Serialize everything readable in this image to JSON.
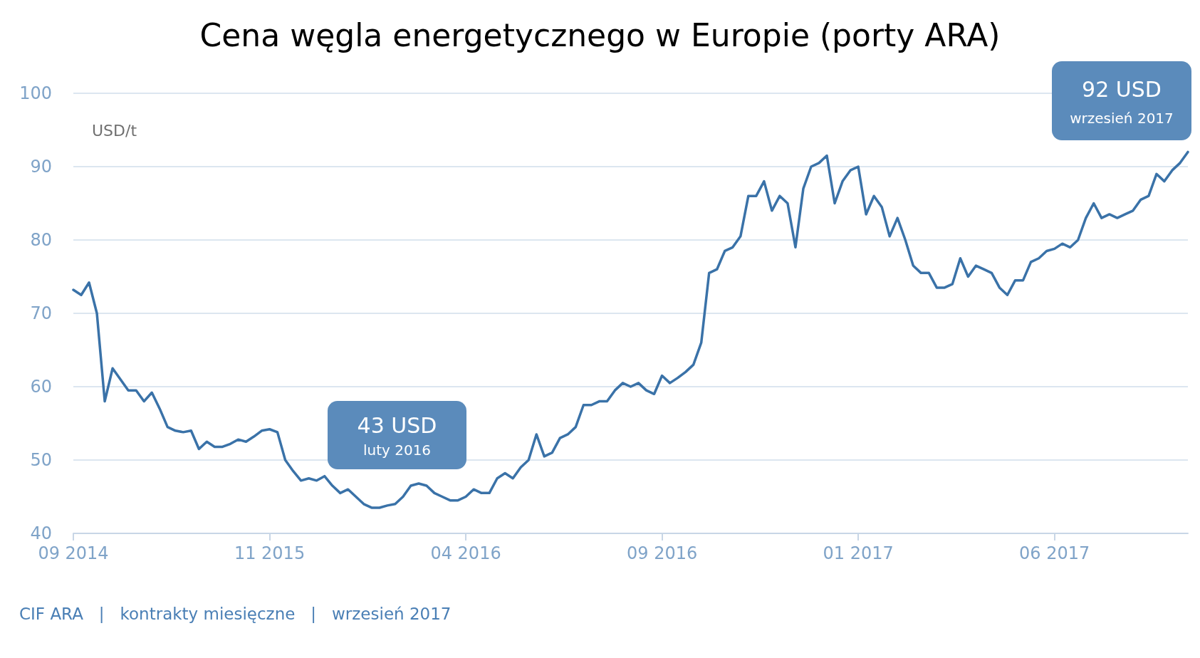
{
  "chart_data": {
    "type": "line",
    "title": "Cena węgla energetycznego w Europie (porty ARA)",
    "ylabel": "USD/t",
    "categories": [
      "09 2014",
      null,
      null,
      null,
      null,
      null,
      null,
      null,
      null,
      null,
      null,
      null,
      null,
      null,
      null,
      null,
      null,
      null,
      null,
      null,
      null,
      null,
      null,
      null,
      null,
      "11 2015",
      null,
      null,
      null,
      null,
      null,
      null,
      null,
      null,
      null,
      null,
      null,
      null,
      null,
      null,
      null,
      null,
      null,
      null,
      null,
      null,
      null,
      null,
      null,
      null,
      "04 2016",
      null,
      null,
      null,
      null,
      null,
      null,
      null,
      null,
      null,
      null,
      null,
      null,
      null,
      null,
      null,
      null,
      null,
      null,
      null,
      null,
      null,
      null,
      null,
      null,
      "09 2016",
      null,
      null,
      null,
      null,
      null,
      null,
      null,
      null,
      null,
      null,
      null,
      null,
      null,
      null,
      null,
      null,
      null,
      null,
      null,
      null,
      null,
      null,
      null,
      null,
      "01 2017",
      null,
      null,
      null,
      null,
      null,
      null,
      null,
      null,
      null,
      null,
      null,
      null,
      null,
      null,
      null,
      null,
      null,
      null,
      null,
      null,
      null,
      null,
      null,
      null,
      "06 2017",
      null,
      null,
      null,
      null,
      null,
      null,
      null,
      null,
      null,
      null,
      null,
      null,
      null,
      null,
      null,
      null,
      null
    ],
    "series": [
      {
        "color": "#3a72a8",
        "values": [
          73.2,
          72.5,
          74.2,
          70,
          58,
          62.5,
          61,
          59.5,
          59.5,
          58,
          59.2,
          57,
          54.5,
          54,
          53.8,
          54,
          51.5,
          52.5,
          51.8,
          51.8,
          52.2,
          52.8,
          52.5,
          53.2,
          54,
          54.2,
          53.8,
          50,
          48.5,
          47.2,
          47.5,
          47.2,
          47.8,
          46.5,
          45.5,
          46,
          45,
          44,
          43.5,
          43.5,
          43.8,
          44,
          45,
          46.5,
          46.8,
          46.5,
          45.5,
          45,
          44.5,
          44.5,
          45,
          46,
          45.5,
          45.5,
          47.5,
          48.2,
          47.5,
          49,
          50,
          53.5,
          50.5,
          51,
          53,
          53.5,
          54.5,
          57.5,
          57.5,
          58,
          58,
          59.5,
          60.5,
          60,
          60.5,
          59.5,
          59,
          61.5,
          60.5,
          61.2,
          62,
          63,
          66,
          75.5,
          76,
          78.5,
          79,
          80.5,
          86,
          86,
          88,
          84,
          86,
          85,
          79,
          87,
          90,
          90.5,
          91.5,
          85,
          88,
          89.5,
          90,
          83.5,
          86,
          84.5,
          80.5,
          83,
          80,
          76.5,
          75.5,
          75.5,
          73.5,
          73.5,
          74,
          77.5,
          75,
          76.5,
          76,
          75.5,
          73.5,
          72.5,
          74.5,
          74.5,
          77,
          77.5,
          78.5,
          78.8,
          79.5,
          79,
          80,
          83,
          85,
          83,
          83.5,
          83,
          83.5,
          84,
          85.5,
          86,
          89,
          88,
          89.5,
          90.5,
          92
        ]
      }
    ],
    "ylim": [
      40,
      100
    ],
    "yticks": [
      40,
      50,
      60,
      70,
      80,
      90,
      100
    ],
    "grid": "y",
    "marker": "none",
    "line_style": "solid",
    "annotations": [
      "43 USD",
      "luty 2016",
      "92 USD",
      "wrzesień 2017",
      "CIF ARA   |   kontrakty miesięczne   |   wrzesień 2017"
    ]
  }
}
